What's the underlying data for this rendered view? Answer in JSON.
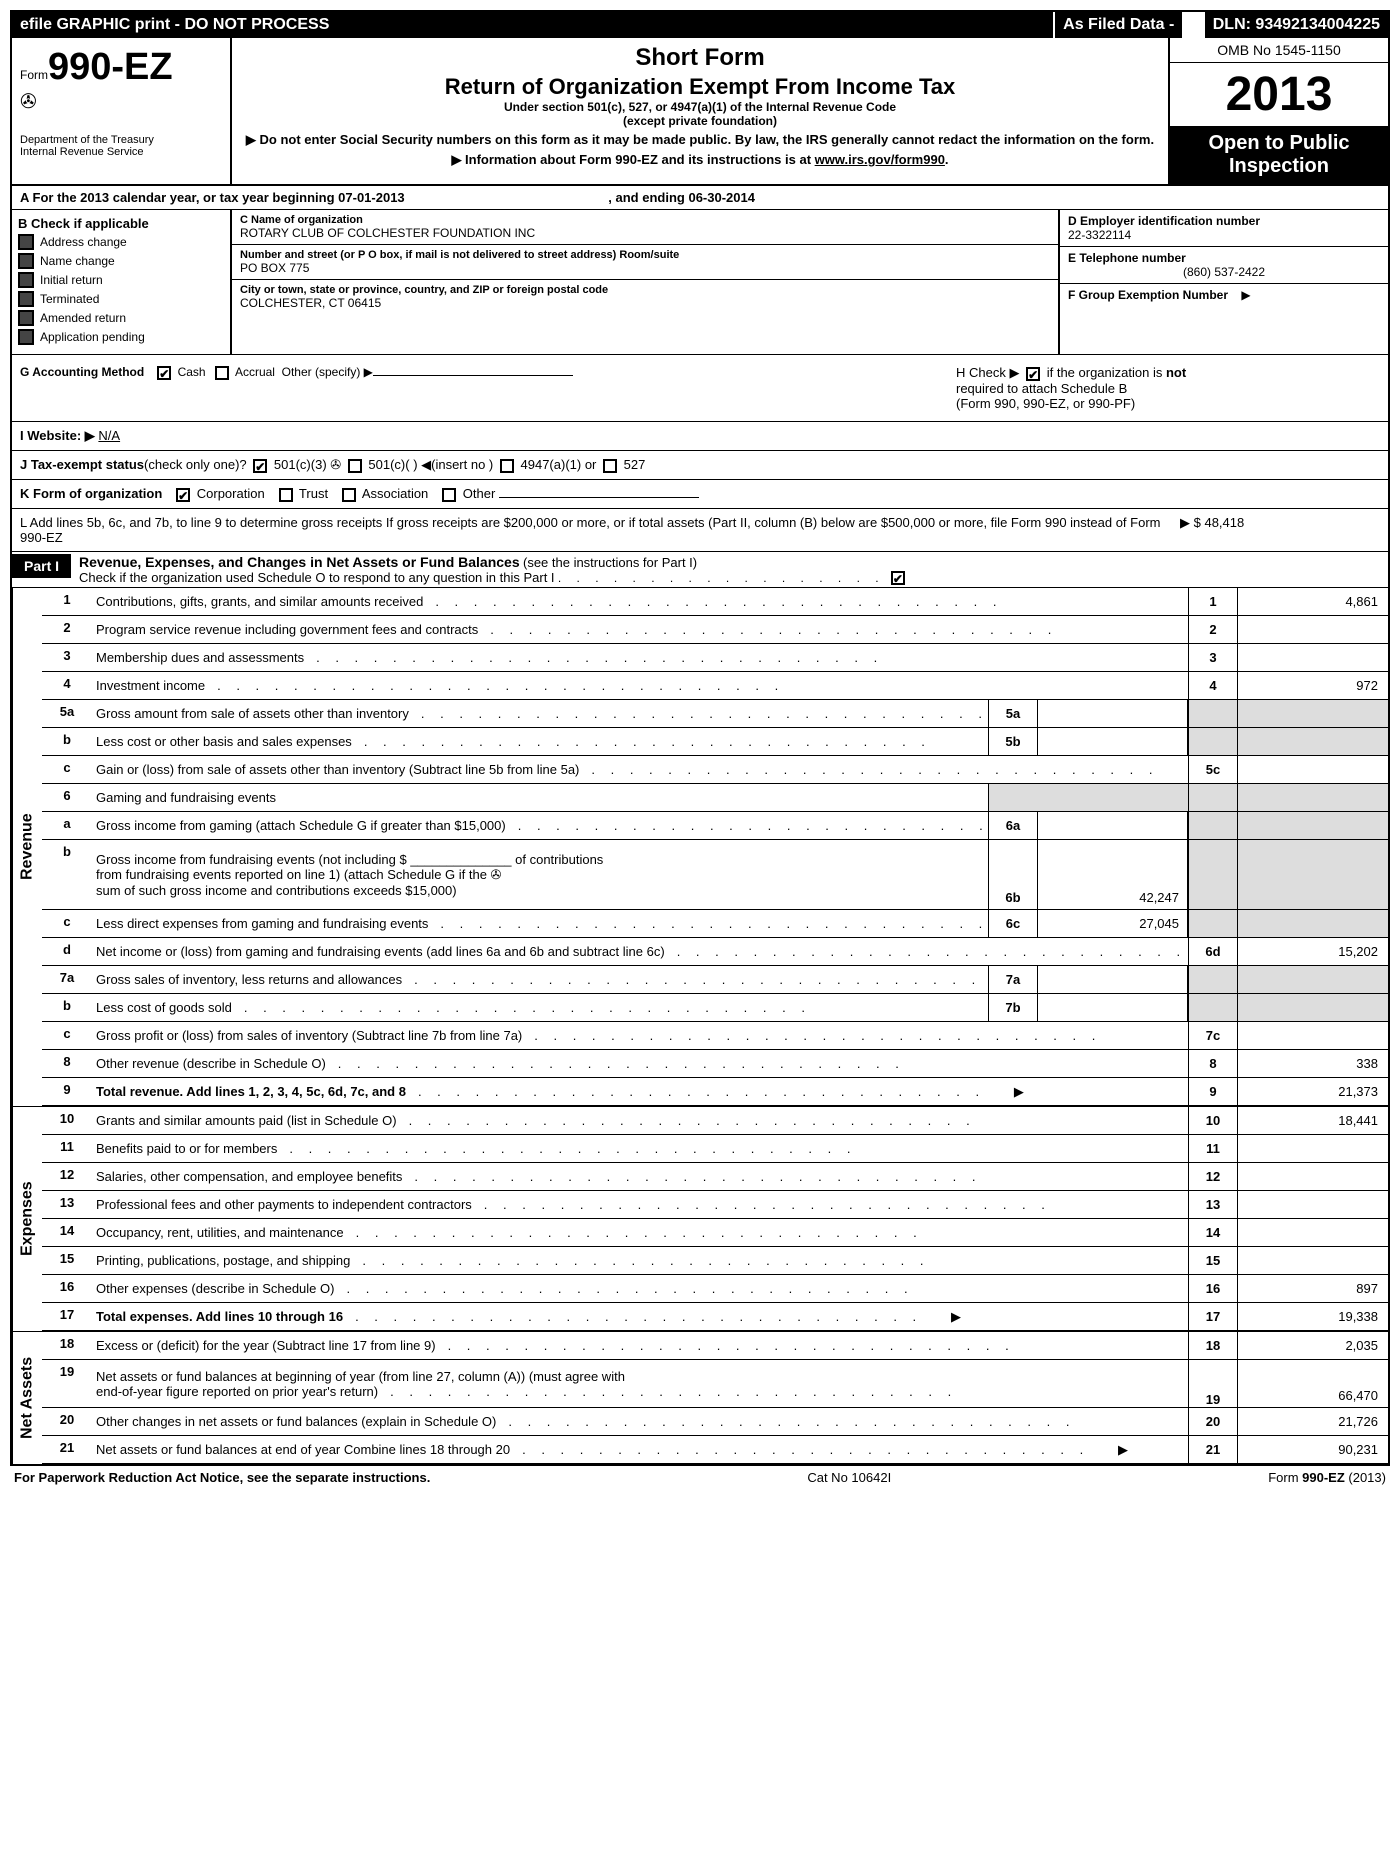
{
  "meta": {
    "topbar_left": "efile GRAPHIC print - DO NOT PROCESS",
    "topbar_mid": "As Filed Data -",
    "dln_label": "DLN:",
    "dln": "93492134004225",
    "form_prefix": "Form",
    "form_number": "990-EZ",
    "dept1": "Department of the Treasury",
    "dept2": "Internal Revenue Service",
    "short_form": "Short Form",
    "title": "Return of Organization Exempt From Income Tax",
    "subtitle1": "Under section 501(c), 527, or 4947(a)(1) of the Internal Revenue Code",
    "subtitle2": "(except private foundation)",
    "warn1": "▶ Do not enter Social Security numbers on this form as it may be made public. By law, the IRS generally cannot redact the information on the form.",
    "warn2_pre": "▶ Information about Form 990-EZ and its instructions is at ",
    "warn2_link": "www.irs.gov/form990",
    "omb": "OMB No 1545-1150",
    "year": "2013",
    "inspection1": "Open to Public",
    "inspection2": "Inspection"
  },
  "row_a": {
    "label": "A  For the 2013 calendar year, or tax year beginning",
    "begin": "07-01-2013",
    "mid": ", and ending",
    "end": "06-30-2014"
  },
  "col_b": {
    "header": "B  Check if applicable",
    "items": [
      "Address change",
      "Name change",
      "Initial return",
      "Terminated",
      "Amended return",
      "Application pending"
    ]
  },
  "col_c": {
    "name_label": "C Name of organization",
    "name": "ROTARY CLUB OF COLCHESTER FOUNDATION INC",
    "addr_label": "Number and street (or P O box, if mail is not delivered to street address) Room/suite",
    "addr": "PO BOX 775",
    "city_label": "City or town, state or province, country, and ZIP or foreign postal code",
    "city": "COLCHESTER, CT 06415"
  },
  "col_def": {
    "d_label": "D Employer identification number",
    "d_val": "22-3322114",
    "e_label": "E Telephone number",
    "e_val": "(860) 537-2422",
    "f_label": "F Group Exemption Number",
    "f_arrow": "▶"
  },
  "row_g": {
    "label": "G Accounting Method",
    "opt1": "Cash",
    "opt2": "Accrual",
    "opt3": "Other (specify) ▶"
  },
  "row_h": {
    "pre": "H  Check ▶",
    "post1": "if the organization is",
    "post_not": "not",
    "post2": "required to attach Schedule B",
    "post3": "(Form 990, 990-EZ, or 990-PF)"
  },
  "row_i": {
    "label": "I Website: ▶",
    "val": "N/A"
  },
  "row_j": {
    "label": "J Tax-exempt status",
    "sub": "(check only one)?",
    "opt1": "501(c)(3)",
    "opt2": "501(c)(   ) ◀(insert no )",
    "opt3": "4947(a)(1) or",
    "opt4": "527"
  },
  "row_k": {
    "label": "K Form of organization",
    "opt1": "Corporation",
    "opt2": "Trust",
    "opt3": "Association",
    "opt4": "Other"
  },
  "row_l": {
    "text": "L Add lines 5b, 6c, and 7b, to line 9 to determine gross receipts  If gross receipts are $200,000 or more, or if total assets (Part II, column (B) below are $500,000 or more, file Form 990 instead of Form 990-EZ",
    "arrow": "▶",
    "val": "$ 48,418"
  },
  "part1": {
    "label": "Part I",
    "title": "Revenue, Expenses, and Changes in Net Assets or Fund Balances",
    "title_sub": "(see the instructions for Part I)",
    "check_line": "Check if the organization used Schedule O to respond to any question in this Part I"
  },
  "sections": {
    "revenue": "Revenue",
    "expenses": "Expenses",
    "netassets": "Net Assets"
  },
  "lines": {
    "l1": {
      "n": "1",
      "d": "Contributions, gifts, grants, and similar amounts received",
      "rn": "1",
      "rv": "4,861"
    },
    "l2": {
      "n": "2",
      "d": "Program service revenue including government fees and contracts",
      "rn": "2",
      "rv": ""
    },
    "l3": {
      "n": "3",
      "d": "Membership dues and assessments",
      "rn": "3",
      "rv": ""
    },
    "l4": {
      "n": "4",
      "d": "Investment income",
      "rn": "4",
      "rv": "972"
    },
    "l5a": {
      "n": "5a",
      "d": "Gross amount from sale of assets other than inventory",
      "mn": "5a",
      "mv": ""
    },
    "l5b": {
      "n": "b",
      "d": "Less  cost or other basis and sales expenses",
      "mn": "5b",
      "mv": ""
    },
    "l5c": {
      "n": "c",
      "d": "Gain or (loss) from sale of assets other than inventory (Subtract line 5b from line 5a)",
      "rn": "5c",
      "rv": ""
    },
    "l6": {
      "n": "6",
      "d": "Gaming and fundraising events"
    },
    "l6a": {
      "n": "a",
      "d": "Gross income from gaming (attach Schedule G if greater than $15,000)",
      "mn": "6a",
      "mv": ""
    },
    "l6b": {
      "n": "b",
      "d1": "Gross income from fundraising events (not including $ ______________ of contributions",
      "d2": "from fundraising events reported on line 1) (attach Schedule G if the",
      "d3": "sum of such gross income and contributions exceeds $15,000)",
      "mn": "6b",
      "mv": "42,247"
    },
    "l6c": {
      "n": "c",
      "d": "Less  direct expenses from gaming and fundraising events",
      "mn": "6c",
      "mv": "27,045"
    },
    "l6d": {
      "n": "d",
      "d": "Net income or (loss) from gaming and fundraising events (add lines 6a and 6b and subtract line 6c)",
      "rn": "6d",
      "rv": "15,202"
    },
    "l7a": {
      "n": "7a",
      "d": "Gross sales of inventory, less returns and allowances",
      "mn": "7a",
      "mv": ""
    },
    "l7b": {
      "n": "b",
      "d": "Less  cost of goods sold",
      "mn": "7b",
      "mv": ""
    },
    "l7c": {
      "n": "c",
      "d": "Gross profit or (loss) from sales of inventory (Subtract line 7b from line 7a)",
      "rn": "7c",
      "rv": ""
    },
    "l8": {
      "n": "8",
      "d": "Other revenue (describe in Schedule O)",
      "rn": "8",
      "rv": "338"
    },
    "l9": {
      "n": "9",
      "d": "Total revenue. Add lines 1, 2, 3, 4, 5c, 6d, 7c, and 8",
      "rn": "9",
      "rv": "21,373",
      "bold": true,
      "arrow": true
    },
    "l10": {
      "n": "10",
      "d": "Grants and similar amounts paid (list in Schedule O)",
      "rn": "10",
      "rv": "18,441"
    },
    "l11": {
      "n": "11",
      "d": "Benefits paid to or for members",
      "rn": "11",
      "rv": ""
    },
    "l12": {
      "n": "12",
      "d": "Salaries, other compensation, and employee benefits",
      "rn": "12",
      "rv": ""
    },
    "l13": {
      "n": "13",
      "d": "Professional fees and other payments to independent contractors",
      "rn": "13",
      "rv": ""
    },
    "l14": {
      "n": "14",
      "d": "Occupancy, rent, utilities, and maintenance",
      "rn": "14",
      "rv": ""
    },
    "l15": {
      "n": "15",
      "d": "Printing, publications, postage, and shipping",
      "rn": "15",
      "rv": ""
    },
    "l16": {
      "n": "16",
      "d": "Other expenses (describe in Schedule O)",
      "rn": "16",
      "rv": "897"
    },
    "l17": {
      "n": "17",
      "d": "Total expenses. Add lines 10 through 16",
      "rn": "17",
      "rv": "19,338",
      "bold": true,
      "arrow": true
    },
    "l18": {
      "n": "18",
      "d": "Excess or (deficit) for the year (Subtract line 17 from line 9)",
      "rn": "18",
      "rv": "2,035"
    },
    "l19": {
      "n": "19",
      "d1": "Net assets or fund balances at beginning of year (from line 27, column (A)) (must agree with",
      "d2": "end-of-year figure reported on prior year's return)",
      "rn": "19",
      "rv": "66,470"
    },
    "l20": {
      "n": "20",
      "d": "Other changes in net assets or fund balances (explain in Schedule O)",
      "rn": "20",
      "rv": "21,726"
    },
    "l21": {
      "n": "21",
      "d": "Net assets or fund balances at end of year  Combine lines 18 through 20",
      "rn": "21",
      "rv": "90,231",
      "arrow": true
    }
  },
  "footer": {
    "left": "For Paperwork Reduction Act Notice, see the separate instructions.",
    "mid": "Cat No 10642I",
    "right_pre": "Form ",
    "right_bold": "990-EZ",
    "right_post": " (2013)"
  }
}
